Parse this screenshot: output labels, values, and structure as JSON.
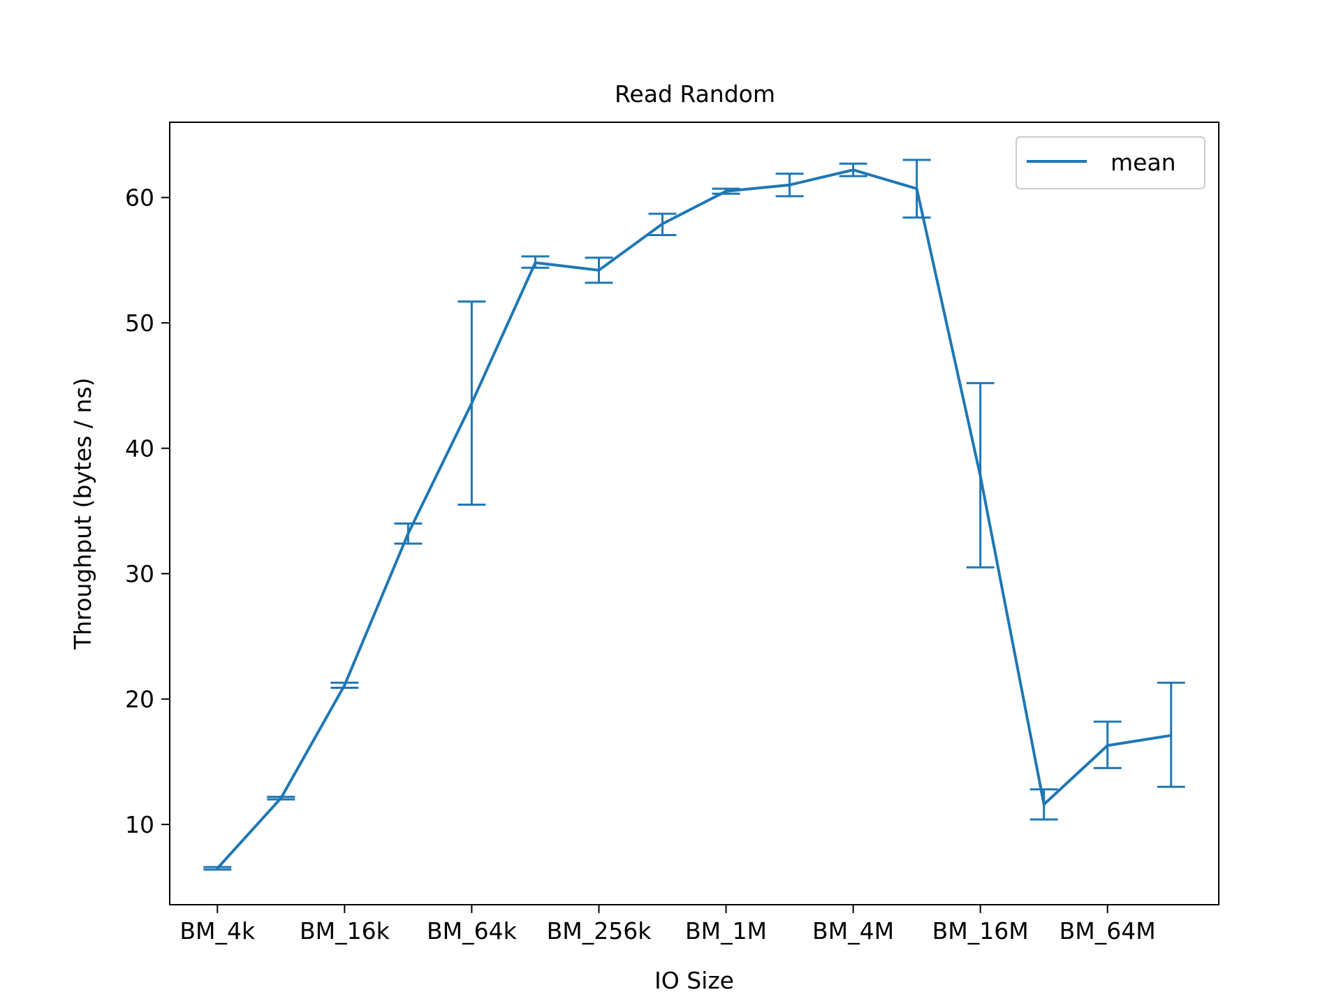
{
  "chart_data": {
    "type": "line",
    "title": "Read Random",
    "xlabel": "IO Size",
    "ylabel": "Throughput (bytes / ns)",
    "x_tick_labels": [
      "BM_4k",
      "BM_16k",
      "BM_64k",
      "BM_256k",
      "BM_1M",
      "BM_4M",
      "BM_16M",
      "BM_64M"
    ],
    "x_tick_positions": [
      0,
      2,
      4,
      6,
      8,
      10,
      12,
      14
    ],
    "xlim": [
      -0.75,
      15.75
    ],
    "y_ticks": [
      10,
      20,
      30,
      40,
      50,
      60
    ],
    "y_tick_labels": [
      "10",
      "20",
      "30",
      "40",
      "50",
      "60"
    ],
    "ylim": [
      3.6,
      66.0
    ],
    "grid": false,
    "legend_position": "upper right",
    "series": [
      {
        "name": "mean",
        "color": "#1f77b4",
        "x": [
          0,
          1,
          2,
          3,
          4,
          5,
          6,
          7,
          8,
          9,
          10,
          11,
          12,
          13,
          14,
          15
        ],
        "y": [
          6.5,
          12.1,
          21.1,
          33.2,
          43.6,
          54.8,
          54.2,
          57.9,
          60.5,
          61.0,
          62.2,
          60.7,
          37.8,
          11.6,
          16.3,
          17.1
        ],
        "err_low": [
          6.4,
          12.0,
          20.9,
          32.4,
          35.5,
          54.4,
          53.2,
          57.0,
          60.3,
          60.1,
          61.7,
          58.4,
          30.5,
          10.4,
          14.5,
          13.0
        ],
        "err_high": [
          6.6,
          12.2,
          21.3,
          34.0,
          51.7,
          55.3,
          55.2,
          58.7,
          60.7,
          61.9,
          62.7,
          63.0,
          45.2,
          12.8,
          18.2,
          21.3
        ]
      }
    ]
  }
}
